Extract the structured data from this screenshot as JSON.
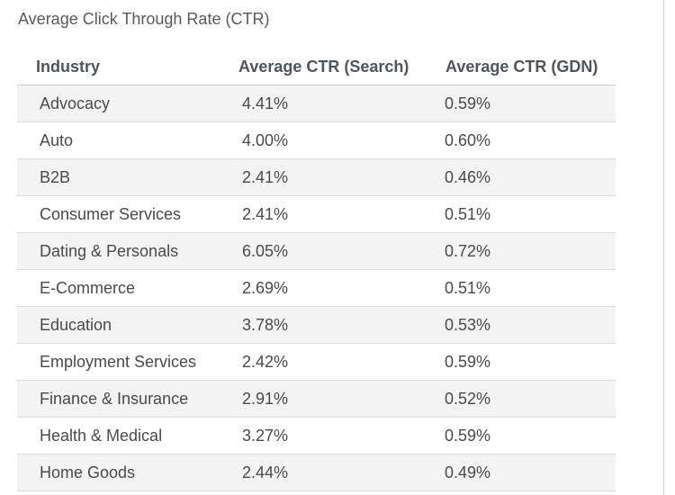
{
  "title": "Average Click Through Rate (CTR)",
  "columns": [
    "Industry",
    "Average CTR (Search)",
    "Average CTR (GDN)"
  ],
  "rows": [
    [
      "Advocacy",
      "4.41%",
      "0.59%"
    ],
    [
      "Auto",
      "4.00%",
      "0.60%"
    ],
    [
      "B2B",
      "2.41%",
      "0.46%"
    ],
    [
      "Consumer Services",
      "2.41%",
      "0.51%"
    ],
    [
      "Dating & Personals",
      "6.05%",
      "0.72%"
    ],
    [
      "E-Commerce",
      "2.69%",
      "0.51%"
    ],
    [
      "Education",
      "3.78%",
      "0.53%"
    ],
    [
      "Employment Services",
      "2.42%",
      "0.59%"
    ],
    [
      "Finance & Insurance",
      "2.91%",
      "0.52%"
    ],
    [
      "Health & Medical",
      "3.27%",
      "0.59%"
    ],
    [
      "Home Goods",
      "2.44%",
      "0.49%"
    ]
  ],
  "highlighted_row": "Education",
  "colors": {
    "highlight": "#f2f21a",
    "stripe": "#f3f3f3",
    "header_text": "#4b5660",
    "body_text": "#4a4a4a"
  }
}
